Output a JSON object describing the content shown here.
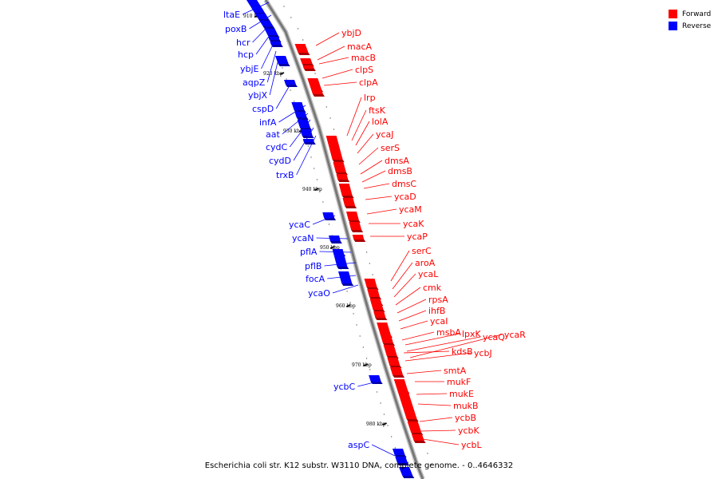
{
  "diagram": {
    "caption": "Escherichia coli str. K12 substr. W3110 DNA, complete genome. - 0..4646332",
    "legend": [
      {
        "label": "Forward",
        "color": "#ff0000"
      },
      {
        "label": "Reverse",
        "color": "#0000ff"
      }
    ],
    "colors": {
      "forward": "#ff0000",
      "reverse": "#0000ff",
      "backbone": "#777777"
    },
    "ticks": [
      "910 kbp",
      "920 kbp",
      "930 kbp",
      "940 kbp",
      "950 kbp",
      "960 kbp",
      "970 kbp",
      "980 kbp"
    ],
    "reverse_genes": [
      "ltaE",
      "poxB",
      "hcr",
      "hcp",
      "ybjE",
      "aqpZ",
      "ybjX",
      "cspD",
      "infA",
      "aat",
      "cydC",
      "cydD",
      "trxB",
      "ycaC",
      "ycaN",
      "pflA",
      "pflB",
      "focA",
      "ycaO",
      "ycbC",
      "aspC"
    ],
    "forward_genes": [
      "ybjD",
      "macA",
      "macB",
      "clpS",
      "clpA",
      "lrp",
      "ftsK",
      "lolA",
      "ycaJ",
      "serS",
      "dmsA",
      "dmsB",
      "dmsC",
      "ycaD",
      "ycaM",
      "ycaK",
      "ycaP",
      "serC",
      "aroA",
      "ycaL",
      "cmk",
      "rpsA",
      "ihfB",
      "ycaI",
      "msbA",
      "lpxK",
      "ycaQ",
      "ycaR",
      "kdsB",
      "ycbJ",
      "smtA",
      "mukF",
      "mukE",
      "mukB",
      "ycbB",
      "ycbK",
      "ycbL"
    ]
  }
}
